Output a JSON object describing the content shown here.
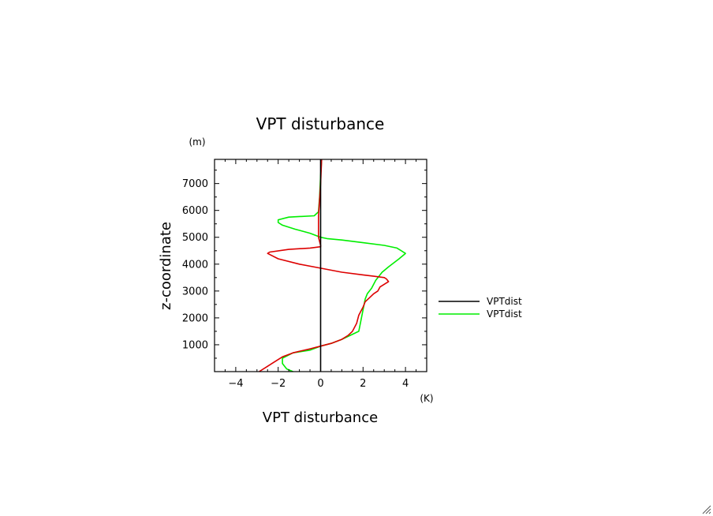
{
  "chart_data": {
    "type": "line",
    "title": "VPT disturbance",
    "xlabel": "VPT disturbance",
    "ylabel": "z-coordinate",
    "x_unit": "(K)",
    "y_unit": "(m)",
    "xlim": [
      -5.0,
      5.0
    ],
    "ylim": [
      0,
      7900
    ],
    "x_ticks": [
      -4,
      -2,
      0,
      2,
      4
    ],
    "x_tick_labels": [
      "−4",
      "−2",
      "0",
      "2",
      "4"
    ],
    "y_ticks": [
      1000,
      2000,
      3000,
      4000,
      5000,
      6000,
      7000
    ],
    "y_tick_labels": [
      "1000",
      "2000",
      "3000",
      "4000",
      "5000",
      "6000",
      "7000"
    ],
    "legend_position": "right",
    "series": [
      {
        "name": "VPTdist",
        "color": "#000000",
        "in_legend": true,
        "x": [
          0,
          0
        ],
        "y": [
          0,
          7900
        ]
      },
      {
        "name": "VPTdist",
        "color": "#00ee00",
        "in_legend": true,
        "x": [
          -1.3,
          -1.6,
          -1.8,
          -1.8,
          -1.3,
          -0.5,
          0.0,
          0.5,
          1.0,
          1.4,
          1.8,
          1.9,
          2.0,
          2.1,
          2.2,
          2.4,
          2.6,
          2.9,
          3.2,
          3.7,
          4.0,
          3.6,
          3.0,
          2.0,
          1.0,
          0.3,
          0.0,
          -0.5,
          -1.2,
          -1.8,
          -2.0,
          -2.0,
          -1.5,
          -0.3,
          -0.1,
          -0.05,
          0.0,
          0.05
        ],
        "y": [
          0,
          100,
          300,
          500,
          700,
          800,
          950,
          1050,
          1200,
          1350,
          1500,
          1900,
          2300,
          2700,
          2900,
          3100,
          3400,
          3700,
          3900,
          4200,
          4400,
          4600,
          4700,
          4800,
          4900,
          4950,
          5000,
          5150,
          5300,
          5450,
          5550,
          5650,
          5750,
          5800,
          5950,
          6500,
          7300,
          7900
        ]
      },
      {
        "name": "",
        "color": "#dd0000",
        "in_legend": false,
        "x": [
          -2.9,
          -2.6,
          -2.3,
          -2.0,
          -1.8,
          -1.3,
          -0.5,
          0.0,
          0.5,
          1.0,
          1.3,
          1.5,
          1.7,
          1.8,
          2.0,
          2.1,
          2.3,
          2.5,
          2.7,
          2.8,
          3.0,
          3.2,
          3.1,
          3.0,
          2.5,
          2.0,
          1.0,
          0.0,
          -1.0,
          -2.0,
          -2.5,
          -2.4,
          -1.5,
          -0.5,
          0.0,
          0.0,
          -0.1,
          -0.1,
          0.0,
          0.05
        ],
        "y": [
          0,
          150,
          300,
          450,
          550,
          700,
          850,
          950,
          1050,
          1200,
          1350,
          1500,
          1800,
          2100,
          2400,
          2600,
          2750,
          2900,
          3000,
          3150,
          3250,
          3350,
          3450,
          3500,
          3550,
          3600,
          3700,
          3850,
          4000,
          4200,
          4400,
          4450,
          4550,
          4600,
          4650,
          4700,
          5000,
          5800,
          7000,
          7900
        ]
      }
    ]
  }
}
